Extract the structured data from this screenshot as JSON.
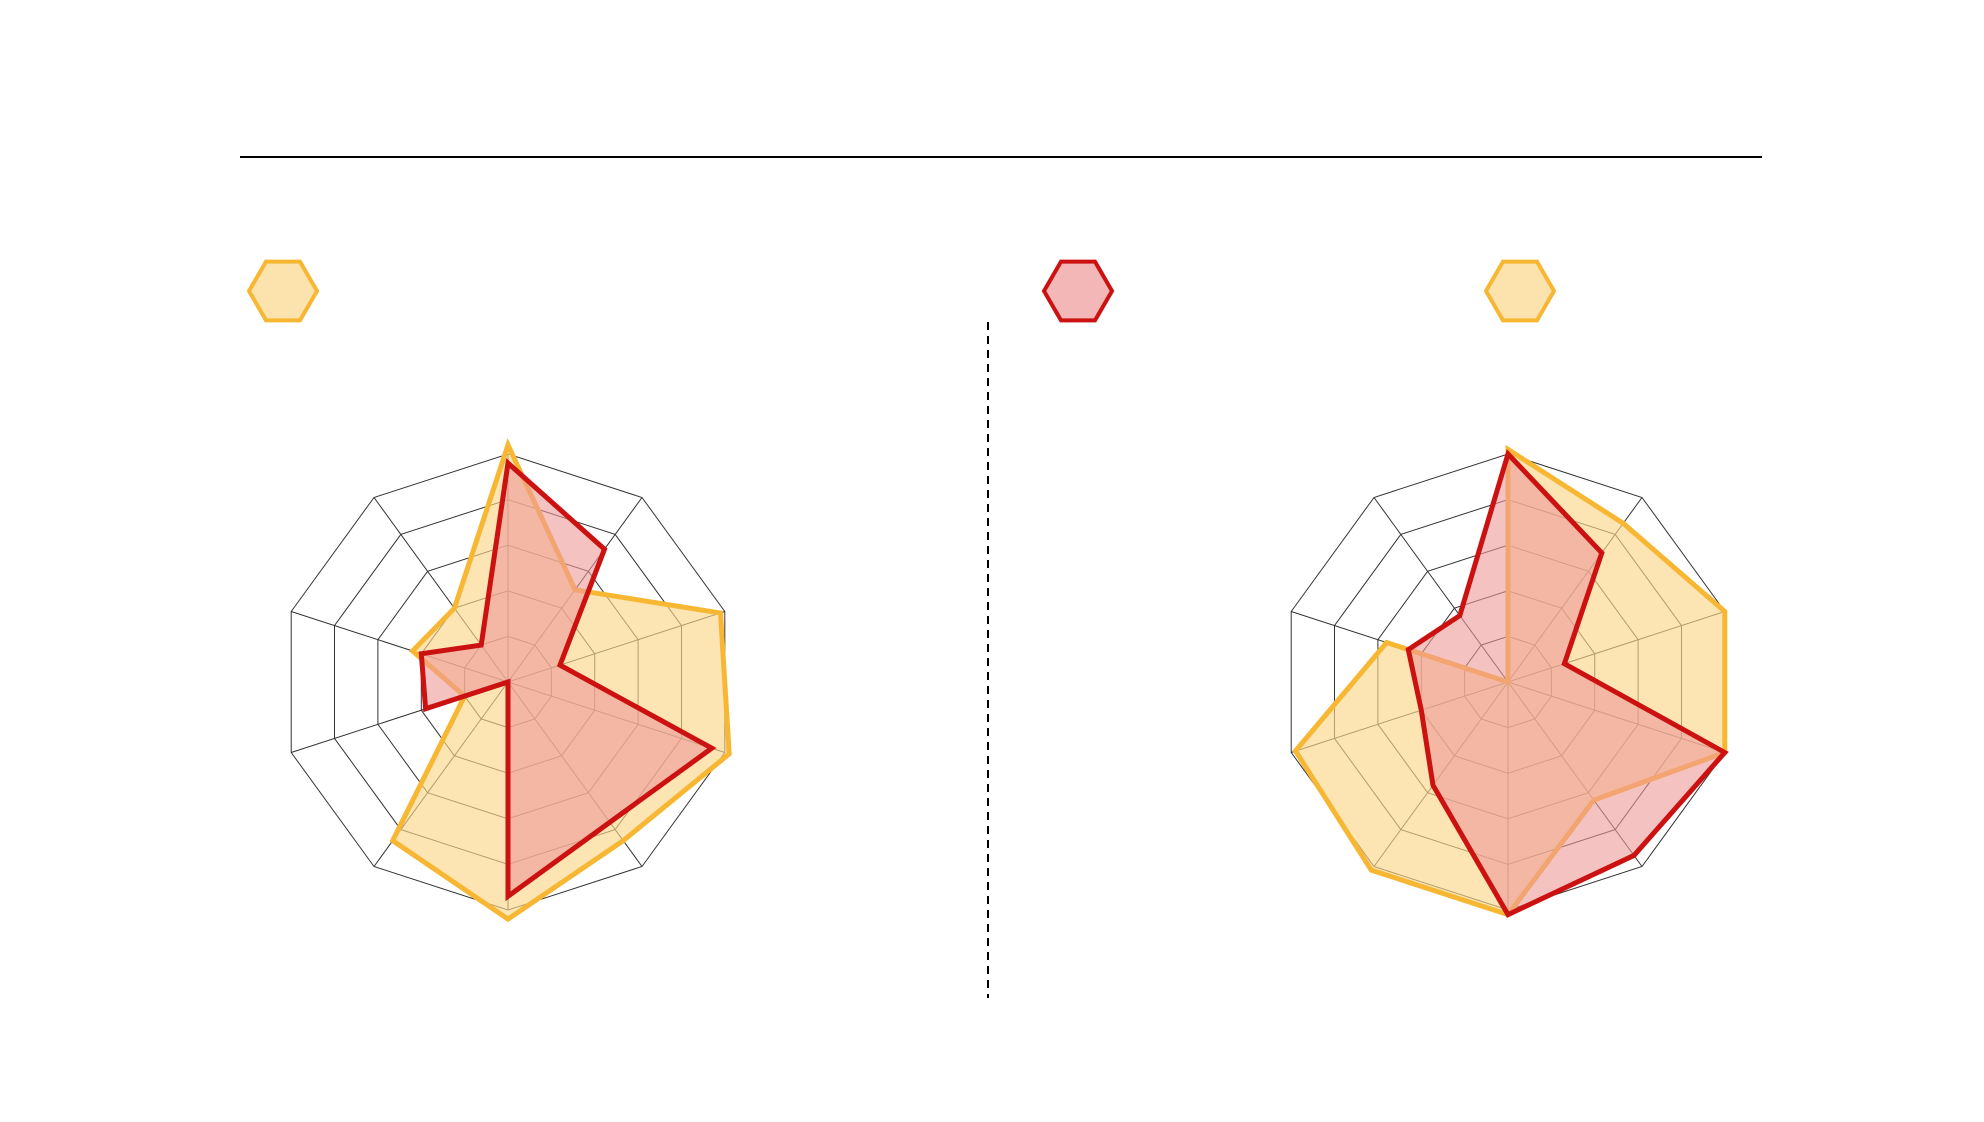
{
  "colors": {
    "orange_stroke": "#F7B733",
    "orange_fill": "#FBD58A",
    "red_stroke": "#CC1111",
    "red_fill": "#EE9999",
    "grid": "#333333",
    "divider": "#000000"
  },
  "legend": {
    "left": [
      {
        "icon": "hexagon-icon",
        "color_role": "orange"
      }
    ],
    "right": [
      {
        "icon": "hexagon-icon",
        "color_role": "red"
      },
      {
        "icon": "hexagon-icon",
        "color_role": "orange"
      }
    ]
  },
  "chart_data": [
    {
      "type": "radar",
      "axes_count": 10,
      "rings": 5,
      "rlim": [
        0,
        5
      ],
      "grid": true,
      "series": [
        {
          "color_role": "orange",
          "values": [
            5.2,
            2.5,
            4.9,
            5.1,
            4.3,
            5.2,
            4.3,
            1.0,
            2.2,
            2.0
          ]
        },
        {
          "color_role": "red",
          "values": [
            4.8,
            3.6,
            1.2,
            4.7,
            3.8,
            4.7,
            0.0,
            1.9,
            2.0,
            1.0
          ]
        }
      ]
    },
    {
      "type": "radar",
      "axes_count": 10,
      "rings": 5,
      "rlim": [
        0,
        5
      ],
      "grid": true,
      "series": [
        {
          "color_role": "orange",
          "values": [
            5.1,
            4.3,
            5.0,
            5.0,
            3.2,
            5.1,
            5.1,
            4.9,
            2.8,
            0.0
          ]
        },
        {
          "color_role": "red",
          "values": [
            5.0,
            3.5,
            1.3,
            5.0,
            4.7,
            5.1,
            2.8,
            2.0,
            2.3,
            1.8
          ]
        }
      ]
    }
  ]
}
